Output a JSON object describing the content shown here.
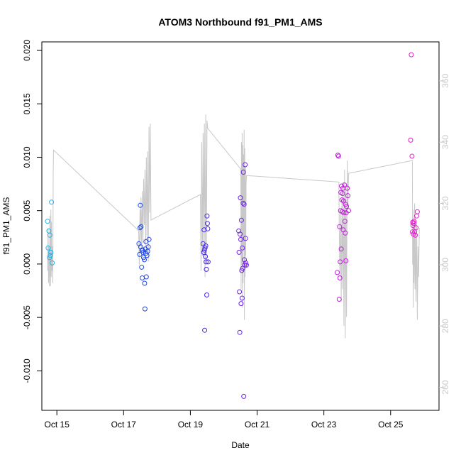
{
  "chart_data": {
    "type": "scatter",
    "title": "ATOM3 Northbound f91_PM1_AMS",
    "xlabel": "Date",
    "ylabel": "f91_PM1_AMS",
    "x_unit": "days since Oct 14 00:00",
    "xlim": [
      14.55,
      26.45
    ],
    "ylim": [
      -0.0137,
      0.0208
    ],
    "y_ticks": [
      -0.01,
      -0.005,
      0.0,
      0.005,
      0.01,
      0.015,
      0.02
    ],
    "y_tick_labels": [
      "-0.010",
      "-0.005",
      "0.000",
      "0.005",
      "0.010",
      "0.015",
      "0.020"
    ],
    "x_ticks": [
      15,
      17,
      19,
      21,
      23,
      25
    ],
    "x_tick_labels": [
      "Oct 15",
      "Oct 17",
      "Oct 19",
      "Oct 21",
      "Oct 23",
      "Oct 25"
    ],
    "right_axis": {
      "ylim": [
        252.5,
        372.7
      ],
      "ticks": [
        260,
        280,
        300,
        320,
        340,
        360
      ],
      "tick_labels": [
        "260",
        "280",
        "300",
        "320",
        "340",
        "360"
      ],
      "color": "#c8c8c8"
    },
    "line_series": {
      "name": "right-axis trace",
      "color": "#c8c8c8",
      "points": [
        [
          14.72,
          298.0
        ],
        [
          14.74,
          312.0
        ],
        [
          14.75,
          294.0
        ],
        [
          14.76,
          306.0
        ],
        [
          14.78,
          293.0
        ],
        [
          14.79,
          316.0
        ],
        [
          14.8,
          302.0
        ],
        [
          14.81,
          293.0
        ],
        [
          14.82,
          318.0
        ],
        [
          14.83,
          296.0
        ],
        [
          14.84,
          314.0
        ],
        [
          14.85,
          298.0
        ],
        [
          14.86,
          306.0
        ],
        [
          14.88,
          294.0
        ],
        [
          14.89,
          330.0
        ],
        [
          14.9,
          337.4
        ],
        [
          17.45,
          311.1
        ],
        [
          17.47,
          300.0
        ],
        [
          17.49,
          318.0
        ],
        [
          17.5,
          308.0
        ],
        [
          17.52,
          322.0
        ],
        [
          17.54,
          305.0
        ],
        [
          17.56,
          324.0
        ],
        [
          17.58,
          307.0
        ],
        [
          17.6,
          328.0
        ],
        [
          17.62,
          313.0
        ],
        [
          17.64,
          331.0
        ],
        [
          17.66,
          306.0
        ],
        [
          17.68,
          335.0
        ],
        [
          17.7,
          309.0
        ],
        [
          17.72,
          337.0
        ],
        [
          17.74,
          301.0
        ],
        [
          17.76,
          345.0
        ],
        [
          17.78,
          317.0
        ],
        [
          17.8,
          346.0
        ],
        [
          17.82,
          314.6
        ],
        [
          19.3,
          322.9
        ],
        [
          19.32,
          298.0
        ],
        [
          19.34,
          340.0
        ],
        [
          19.36,
          303.0
        ],
        [
          19.38,
          343.0
        ],
        [
          19.4,
          305.0
        ],
        [
          19.42,
          346.0
        ],
        [
          19.44,
          296.0
        ],
        [
          19.46,
          349.0
        ],
        [
          19.48,
          301.0
        ],
        [
          19.5,
          347.0
        ],
        [
          19.52,
          344.5
        ],
        [
          20.51,
          331.2
        ],
        [
          20.52,
          292.0
        ],
        [
          20.53,
          340.0
        ],
        [
          20.54,
          300.0
        ],
        [
          20.55,
          343.0
        ],
        [
          20.56,
          286.0
        ],
        [
          20.57,
          339.0
        ],
        [
          20.58,
          294.0
        ],
        [
          20.59,
          336.0
        ],
        [
          20.6,
          305.0
        ],
        [
          20.61,
          344.0
        ],
        [
          20.62,
          282.0
        ],
        [
          20.63,
          338.0
        ],
        [
          20.64,
          296.0
        ],
        [
          20.65,
          332.0
        ],
        [
          20.66,
          303.0
        ],
        [
          20.67,
          326.0
        ],
        [
          20.68,
          329.1
        ],
        [
          23.45,
          327.0
        ],
        [
          23.46,
          312.0
        ],
        [
          23.48,
          296.0
        ],
        [
          23.5,
          318.0
        ],
        [
          23.52,
          288.0
        ],
        [
          23.54,
          322.0
        ],
        [
          23.56,
          292.0
        ],
        [
          23.58,
          327.0
        ],
        [
          23.6,
          280.0
        ],
        [
          23.62,
          331.0
        ],
        [
          23.64,
          276.0
        ],
        [
          23.66,
          326.0
        ],
        [
          23.68,
          283.0
        ],
        [
          23.7,
          334.0
        ],
        [
          23.72,
          318.0
        ],
        [
          23.74,
          329.8
        ],
        [
          25.65,
          334.0
        ],
        [
          25.66,
          300.0
        ],
        [
          25.67,
          318.0
        ],
        [
          25.68,
          286.0
        ],
        [
          25.69,
          312.0
        ],
        [
          25.7,
          294.0
        ],
        [
          25.72,
          320.0
        ],
        [
          25.73,
          292.0
        ],
        [
          25.74,
          316.0
        ],
        [
          25.76,
          288.0
        ],
        [
          25.78,
          314.0
        ],
        [
          25.8,
          282.0
        ],
        [
          25.82,
          306.0
        ],
        [
          25.84,
          296.0
        ],
        [
          25.86,
          312.0
        ]
      ]
    },
    "scatter_series": {
      "name": "f91_PM1_AMS",
      "marker": "open circle",
      "color_scale": [
        "#1eb4e6",
        "#1e28e6",
        "#aa1ee6",
        "#e61ecd"
      ],
      "points": [
        [
          14.72,
          0.004
        ],
        [
          14.74,
          0.0015
        ],
        [
          14.76,
          0.0031
        ],
        [
          14.78,
          0.0006
        ],
        [
          14.79,
          0.0027
        ],
        [
          14.8,
          0.0008
        ],
        [
          14.82,
          0.0011
        ],
        [
          14.84,
          0.0058
        ],
        [
          14.86,
          0.0001
        ],
        [
          17.46,
          0.0019
        ],
        [
          17.48,
          0.0009
        ],
        [
          17.49,
          0.0034
        ],
        [
          17.5,
          0.0055
        ],
        [
          17.51,
          0.0016
        ],
        [
          17.52,
          0.0035
        ],
        [
          17.54,
          -0.0003
        ],
        [
          17.55,
          0.0013
        ],
        [
          17.56,
          -0.0013
        ],
        [
          17.57,
          0.0013
        ],
        [
          17.58,
          0.0011
        ],
        [
          17.6,
          0.0006
        ],
        [
          17.62,
          0.0004
        ],
        [
          17.63,
          -0.0018
        ],
        [
          17.64,
          -0.0042
        ],
        [
          17.65,
          0.0014
        ],
        [
          17.66,
          0.001
        ],
        [
          17.67,
          0.0021
        ],
        [
          17.68,
          -0.0012
        ],
        [
          17.7,
          0.0008
        ],
        [
          17.72,
          0.0012
        ],
        [
          17.74,
          0.0016
        ],
        [
          17.76,
          0.0023
        ],
        [
          19.38,
          0.0019
        ],
        [
          19.4,
          0.0011
        ],
        [
          19.41,
          0.0032
        ],
        [
          19.42,
          0.0013
        ],
        [
          19.43,
          -0.0062
        ],
        [
          19.44,
          0.0015
        ],
        [
          19.45,
          0.0007
        ],
        [
          19.46,
          0.0017
        ],
        [
          19.47,
          0.0002
        ],
        [
          19.48,
          -0.0005
        ],
        [
          19.49,
          -0.0029
        ],
        [
          19.5,
          0.0045
        ],
        [
          19.51,
          0.0038
        ],
        [
          19.52,
          0.0033
        ],
        [
          19.53,
          0.0002
        ],
        [
          20.45,
          0.0031
        ],
        [
          20.46,
          0.0011
        ],
        [
          20.47,
          -0.0026
        ],
        [
          20.48,
          -0.0064
        ],
        [
          20.49,
          0.0028
        ],
        [
          20.5,
          0.0062
        ],
        [
          20.51,
          0.0023
        ],
        [
          20.52,
          -0.0037
        ],
        [
          20.53,
          0.0041
        ],
        [
          20.54,
          -0.0006
        ],
        [
          20.55,
          -0.0032
        ],
        [
          20.56,
          0.0015
        ],
        [
          20.57,
          -0.0004
        ],
        [
          20.58,
          0.0057
        ],
        [
          20.59,
          0.0086
        ],
        [
          20.6,
          -0.0124
        ],
        [
          20.61,
          0.0056
        ],
        [
          20.62,
          0.0004
        ],
        [
          20.63,
          -0.0001
        ],
        [
          20.64,
          0.0093
        ],
        [
          20.65,
          0.0024
        ],
        [
          20.66,
          0.0001
        ],
        [
          20.68,
          -0.0001
        ],
        [
          23.4,
          -0.0008
        ],
        [
          23.42,
          0.0102
        ],
        [
          23.44,
          0.0101
        ],
        [
          23.46,
          -0.0033
        ],
        [
          23.47,
          0.0035
        ],
        [
          23.48,
          -0.0013
        ],
        [
          23.49,
          0.0002
        ],
        [
          23.5,
          0.005
        ],
        [
          23.51,
          0.0067
        ],
        [
          23.52,
          0.0014
        ],
        [
          23.53,
          0.0073
        ],
        [
          23.54,
          0.006
        ],
        [
          23.55,
          0.0049
        ],
        [
          23.56,
          0.0066
        ],
        [
          23.57,
          0.0071
        ],
        [
          23.58,
          0.0032
        ],
        [
          23.59,
          0.0059
        ],
        [
          23.6,
          0.0048
        ],
        [
          23.62,
          0.0074
        ],
        [
          23.63,
          0.004
        ],
        [
          23.64,
          0.0029
        ],
        [
          23.65,
          0.0056
        ],
        [
          23.66,
          0.0003
        ],
        [
          23.67,
          0.0048
        ],
        [
          23.68,
          0.0054
        ],
        [
          23.7,
          0.0071
        ],
        [
          23.72,
          0.0064
        ],
        [
          23.74,
          0.005
        ],
        [
          25.6,
          0.0116
        ],
        [
          25.62,
          0.0196
        ],
        [
          25.64,
          0.0101
        ],
        [
          25.65,
          0.003
        ],
        [
          25.66,
          0.0039
        ],
        [
          25.67,
          0.0036
        ],
        [
          25.68,
          0.0028
        ],
        [
          25.69,
          0.0038
        ],
        [
          25.7,
          0.004
        ],
        [
          25.72,
          0.003
        ],
        [
          25.74,
          0.0027
        ],
        [
          25.76,
          0.0034
        ],
        [
          25.78,
          0.0045
        ],
        [
          25.8,
          0.0049
        ]
      ]
    }
  }
}
